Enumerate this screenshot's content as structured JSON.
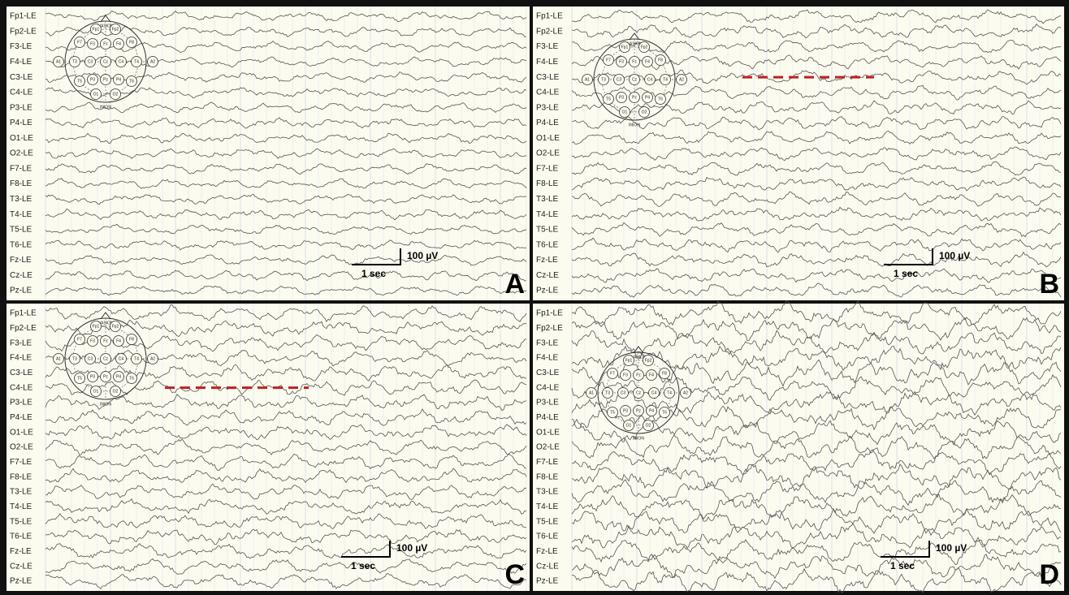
{
  "channels": [
    "Fp1-LE",
    "Fp2-LE",
    "F3-LE",
    "F4-LE",
    "C3-LE",
    "C4-LE",
    "P3-LE",
    "P4-LE",
    "O1-LE",
    "O2-LE",
    "F7-LE",
    "F8-LE",
    "T3-LE",
    "T4-LE",
    "T5-LE",
    "T6-LE",
    "Fz-LE",
    "Cz-LE",
    "Pz-LE"
  ],
  "head_diagram": {
    "top": "NASION",
    "bottom": "INION",
    "electrodes": [
      "Fp1",
      "Fp2",
      "F7",
      "F3",
      "Fz",
      "F4",
      "F8",
      "A1",
      "T3",
      "C3",
      "Cz",
      "C4",
      "T4",
      "A2",
      "T5",
      "P3",
      "Pz",
      "P4",
      "T6",
      "O1",
      "O2"
    ]
  },
  "panels": [
    {
      "label": "A",
      "time_scale": "1 sec",
      "amplitude_scale": "100 µV"
    },
    {
      "label": "B",
      "time_scale": "1 sec",
      "amplitude_scale": "100 µV"
    },
    {
      "label": "C",
      "time_scale": "1 sec",
      "amplitude_scale": "100 µV"
    },
    {
      "label": "D",
      "time_scale": "1 sec",
      "amplitude_scale": "100 µV"
    }
  ]
}
